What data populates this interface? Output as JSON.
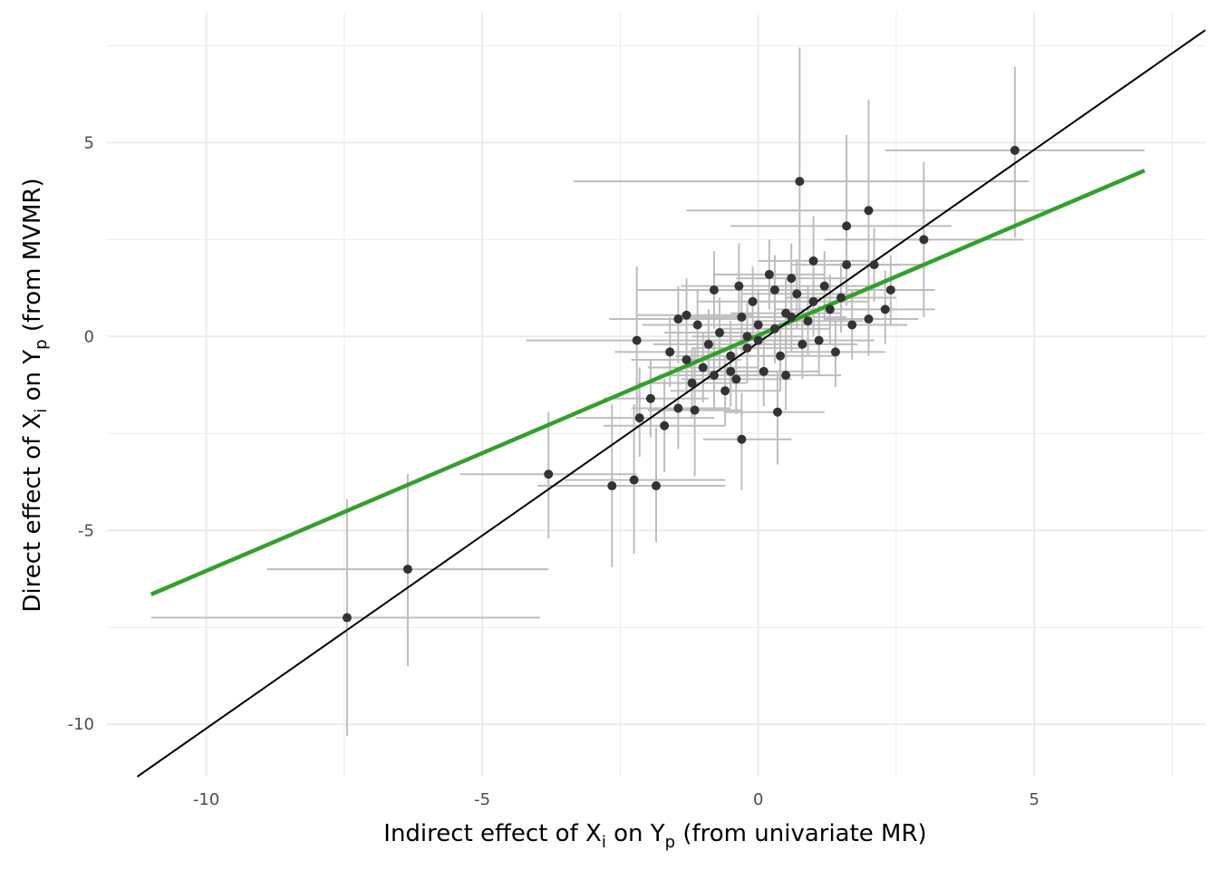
{
  "chart_data": {
    "type": "scatter",
    "title": "",
    "xlabel": {
      "prefix": "Indirect effect of X",
      "sub1": "i",
      "mid": " on Y",
      "sub2": "p",
      "suffix": " (from univariate MR)"
    },
    "ylabel": {
      "prefix": "Direct effect of X",
      "sub1": "i",
      "mid": " on Y",
      "sub2": "p",
      "suffix": " (from MVMR)"
    },
    "xlim": [
      -11.8,
      8.1
    ],
    "ylim": [
      -11.35,
      8.35
    ],
    "x_ticks": [
      -10,
      -5,
      0,
      5
    ],
    "x_tick_labels": [
      "-10",
      "-5",
      "0",
      "5"
    ],
    "y_ticks": [
      -10,
      -5,
      0,
      5
    ],
    "y_tick_labels": [
      "-10",
      "-5",
      "0",
      "5"
    ],
    "grid": true,
    "legend": "none",
    "colors": {
      "point": "#333333",
      "errorbar": "#bdbdbd",
      "fit_line": "#33a02c",
      "identity_line": "#000000",
      "grid": "#ebebeb"
    },
    "lines": [
      {
        "name": "",
        "kind": "regression",
        "x": [
          -11.0,
          7.0
        ],
        "y": [
          -6.65,
          4.28
        ]
      },
      {
        "name": "",
        "kind": "identity",
        "x": [
          -11.25,
          8.1
        ],
        "y": [
          -11.35,
          7.9
        ]
      }
    ],
    "points": [
      {
        "x": -7.45,
        "y": -7.25,
        "xlo": -11.0,
        "xhi": -3.95,
        "ylo": -10.3,
        "yhi": -4.2
      },
      {
        "x": -6.35,
        "y": -6.0,
        "xlo": -8.9,
        "xhi": -3.8,
        "ylo": -8.5,
        "yhi": -3.55
      },
      {
        "x": -3.8,
        "y": -3.55,
        "xlo": -5.4,
        "xhi": -2.2,
        "ylo": -5.2,
        "yhi": -1.95
      },
      {
        "x": -2.65,
        "y": -3.85,
        "xlo": -4.0,
        "xhi": -1.3,
        "ylo": -5.95,
        "yhi": -1.75
      },
      {
        "x": -2.25,
        "y": -3.7,
        "xlo": -3.5,
        "xhi": -0.6,
        "ylo": -5.6,
        "yhi": -1.75
      },
      {
        "x": -1.85,
        "y": -3.85,
        "xlo": -3.3,
        "xhi": -0.6,
        "ylo": -5.3,
        "yhi": -2.35
      },
      {
        "x": -2.2,
        "y": -0.1,
        "xlo": -4.2,
        "xhi": -0.2,
        "ylo": -2.1,
        "yhi": 1.8
      },
      {
        "x": -2.15,
        "y": -2.1,
        "xlo": -3.3,
        "xhi": -0.8,
        "ylo": -3.1,
        "yhi": -0.8
      },
      {
        "x": -1.7,
        "y": -2.3,
        "xlo": -2.8,
        "xhi": -0.6,
        "ylo": -3.5,
        "yhi": -1.1
      },
      {
        "x": -1.95,
        "y": -1.6,
        "xlo": -2.8,
        "xhi": -0.9,
        "ylo": -2.6,
        "yhi": -0.6
      },
      {
        "x": -1.45,
        "y": -1.85,
        "xlo": -2.3,
        "xhi": -0.5,
        "ylo": -2.9,
        "yhi": -0.9
      },
      {
        "x": -1.15,
        "y": -1.9,
        "xlo": -2.0,
        "xhi": -0.3,
        "ylo": -3.6,
        "yhi": -0.3
      },
      {
        "x": -1.45,
        "y": 0.45,
        "xlo": -2.7,
        "xhi": -0.3,
        "ylo": -0.7,
        "yhi": 1.3
      },
      {
        "x": -1.3,
        "y": 0.55,
        "xlo": -2.2,
        "xhi": -0.1,
        "ylo": -0.4,
        "yhi": 1.5
      },
      {
        "x": -0.8,
        "y": 1.2,
        "xlo": -2.2,
        "xhi": 0.3,
        "ylo": 0.2,
        "yhi": 2.2
      },
      {
        "x": -0.35,
        "y": 1.3,
        "xlo": -1.4,
        "xhi": 0.6,
        "ylo": 0.4,
        "yhi": 2.4
      },
      {
        "x": -0.3,
        "y": -2.65,
        "xlo": -1.0,
        "xhi": 0.6,
        "ylo": -3.95,
        "yhi": -1.45
      },
      {
        "x": 0.35,
        "y": -1.95,
        "xlo": -0.6,
        "xhi": 1.2,
        "ylo": -3.3,
        "yhi": -0.9
      },
      {
        "x": 0.75,
        "y": 4.0,
        "xlo": -3.35,
        "xhi": 4.9,
        "ylo": 0.5,
        "yhi": 7.45
      },
      {
        "x": 2.0,
        "y": 3.25,
        "xlo": -1.3,
        "xhi": 5.3,
        "ylo": 0.4,
        "yhi": 6.1
      },
      {
        "x": 1.6,
        "y": 2.85,
        "xlo": -0.5,
        "xhi": 3.5,
        "ylo": 1.2,
        "yhi": 5.2
      },
      {
        "x": 4.65,
        "y": 4.8,
        "xlo": 2.3,
        "xhi": 7.0,
        "ylo": 2.55,
        "yhi": 6.95
      },
      {
        "x": 3.0,
        "y": 2.5,
        "xlo": 1.2,
        "xhi": 4.8,
        "ylo": 0.5,
        "yhi": 4.5
      },
      {
        "x": 1.0,
        "y": 1.95,
        "xlo": 0.0,
        "xhi": 2.0,
        "ylo": 0.8,
        "yhi": 3.1
      },
      {
        "x": 2.1,
        "y": 1.85,
        "xlo": 1.2,
        "xhi": 3.0,
        "ylo": 0.9,
        "yhi": 2.8
      },
      {
        "x": 2.3,
        "y": 0.7,
        "xlo": 1.5,
        "xhi": 3.2,
        "ylo": -0.2,
        "yhi": 1.7
      },
      {
        "x": 2.0,
        "y": 0.45,
        "xlo": 1.2,
        "xhi": 2.9,
        "ylo": -0.5,
        "yhi": 1.4
      },
      {
        "x": 2.4,
        "y": 1.2,
        "xlo": 1.6,
        "xhi": 3.2,
        "ylo": 0.3,
        "yhi": 2.1
      },
      {
        "x": 1.6,
        "y": 1.85,
        "xlo": 0.6,
        "xhi": 2.6,
        "ylo": 0.8,
        "yhi": 2.9
      },
      {
        "x": 0.5,
        "y": -1.0,
        "xlo": -0.5,
        "xhi": 1.5,
        "ylo": -1.9,
        "yhi": -0.1
      },
      {
        "x": 1.4,
        "y": -0.4,
        "xlo": 0.5,
        "xhi": 2.3,
        "ylo": -1.3,
        "yhi": 0.5
      },
      {
        "x": 0.0,
        "y": 0.3,
        "xlo": -1.0,
        "xhi": 1.0,
        "ylo": -0.6,
        "yhi": 1.2
      },
      {
        "x": -0.5,
        "y": -0.5,
        "xlo": -1.5,
        "xhi": 0.5,
        "ylo": -1.4,
        "yhi": 0.4
      },
      {
        "x": 0.5,
        "y": 0.6,
        "xlo": -0.5,
        "xhi": 1.5,
        "ylo": -0.3,
        "yhi": 1.5
      },
      {
        "x": -1.0,
        "y": -0.8,
        "xlo": -2.0,
        "xhi": 0.0,
        "ylo": -1.7,
        "yhi": 0.1
      },
      {
        "x": 1.0,
        "y": 0.9,
        "xlo": 0.0,
        "xhi": 2.0,
        "ylo": 0.0,
        "yhi": 1.8
      },
      {
        "x": -0.2,
        "y": -0.3,
        "xlo": -1.2,
        "xhi": 0.8,
        "ylo": -1.2,
        "yhi": 0.6
      },
      {
        "x": 0.3,
        "y": 0.2,
        "xlo": -0.7,
        "xhi": 1.3,
        "ylo": -0.7,
        "yhi": 1.1
      },
      {
        "x": -0.7,
        "y": 0.1,
        "xlo": -1.7,
        "xhi": 0.3,
        "ylo": -0.8,
        "yhi": 1.0
      },
      {
        "x": 0.8,
        "y": -0.2,
        "xlo": -0.2,
        "xhi": 1.8,
        "ylo": -1.1,
        "yhi": 0.7
      },
      {
        "x": -1.2,
        "y": -1.2,
        "xlo": -2.2,
        "xhi": -0.2,
        "ylo": -2.1,
        "yhi": -0.3
      },
      {
        "x": 1.2,
        "y": 1.3,
        "xlo": 0.2,
        "xhi": 2.2,
        "ylo": 0.4,
        "yhi": 2.2
      },
      {
        "x": 0.1,
        "y": -0.9,
        "xlo": -0.9,
        "xhi": 1.1,
        "ylo": -1.8,
        "yhi": 0.0
      },
      {
        "x": -0.1,
        "y": 0.9,
        "xlo": -1.1,
        "xhi": 0.9,
        "ylo": 0.0,
        "yhi": 1.8
      },
      {
        "x": 0.6,
        "y": 1.5,
        "xlo": -0.4,
        "xhi": 1.6,
        "ylo": 0.6,
        "yhi": 2.4
      },
      {
        "x": -0.6,
        "y": -1.4,
        "xlo": -1.6,
        "xhi": 0.4,
        "ylo": -2.3,
        "yhi": -0.5
      },
      {
        "x": 1.7,
        "y": 0.3,
        "xlo": 0.7,
        "xhi": 2.7,
        "ylo": -0.6,
        "yhi": 1.2
      },
      {
        "x": -1.6,
        "y": -0.4,
        "xlo": -2.6,
        "xhi": -0.6,
        "ylo": -1.3,
        "yhi": 0.5
      },
      {
        "x": 0.2,
        "y": 1.6,
        "xlo": -0.8,
        "xhi": 1.2,
        "ylo": 0.7,
        "yhi": 2.5
      },
      {
        "x": -0.4,
        "y": -1.1,
        "xlo": -1.4,
        "xhi": 0.6,
        "ylo": -2.0,
        "yhi": -0.2
      },
      {
        "x": 0.9,
        "y": 0.4,
        "xlo": -0.1,
        "xhi": 1.9,
        "ylo": -0.5,
        "yhi": 1.3
      },
      {
        "x": -0.9,
        "y": -0.2,
        "xlo": -1.9,
        "xhi": 0.1,
        "ylo": -1.1,
        "yhi": 0.7
      },
      {
        "x": 0.4,
        "y": -0.5,
        "xlo": -0.6,
        "xhi": 1.4,
        "ylo": -1.4,
        "yhi": 0.4
      },
      {
        "x": -0.3,
        "y": 0.5,
        "xlo": -1.3,
        "xhi": 0.7,
        "ylo": -0.4,
        "yhi": 1.4
      },
      {
        "x": 1.3,
        "y": 0.7,
        "xlo": 0.3,
        "xhi": 2.3,
        "ylo": -0.2,
        "yhi": 1.6
      },
      {
        "x": -1.3,
        "y": -0.6,
        "xlo": -2.3,
        "xhi": -0.3,
        "ylo": -1.5,
        "yhi": 0.3
      },
      {
        "x": 0.7,
        "y": 1.1,
        "xlo": -0.3,
        "xhi": 1.7,
        "ylo": 0.2,
        "yhi": 2.0
      },
      {
        "x": -0.8,
        "y": -1.0,
        "xlo": -1.8,
        "xhi": 0.2,
        "ylo": -1.9,
        "yhi": -0.1
      },
      {
        "x": 0.0,
        "y": -0.1,
        "xlo": -1.0,
        "xhi": 1.0,
        "ylo": -1.0,
        "yhi": 0.8
      },
      {
        "x": 1.5,
        "y": 1.0,
        "xlo": 0.5,
        "xhi": 2.5,
        "ylo": 0.1,
        "yhi": 1.9
      },
      {
        "x": -1.1,
        "y": 0.3,
        "xlo": -2.1,
        "xhi": -0.1,
        "ylo": -0.6,
        "yhi": 1.2
      },
      {
        "x": 0.3,
        "y": 1.2,
        "xlo": -0.7,
        "xhi": 1.3,
        "ylo": 0.3,
        "yhi": 2.1
      },
      {
        "x": -0.5,
        "y": -0.9,
        "xlo": -1.5,
        "xhi": 0.5,
        "ylo": -1.8,
        "yhi": 0.0
      },
      {
        "x": 1.1,
        "y": -0.1,
        "xlo": 0.1,
        "xhi": 2.1,
        "ylo": -1.0,
        "yhi": 0.8
      },
      {
        "x": -0.2,
        "y": 0.0,
        "xlo": -1.2,
        "xhi": 0.8,
        "ylo": -0.9,
        "yhi": 0.9
      },
      {
        "x": 0.6,
        "y": 0.5,
        "xlo": -0.4,
        "xhi": 1.6,
        "ylo": -0.4,
        "yhi": 1.4
      }
    ]
  }
}
